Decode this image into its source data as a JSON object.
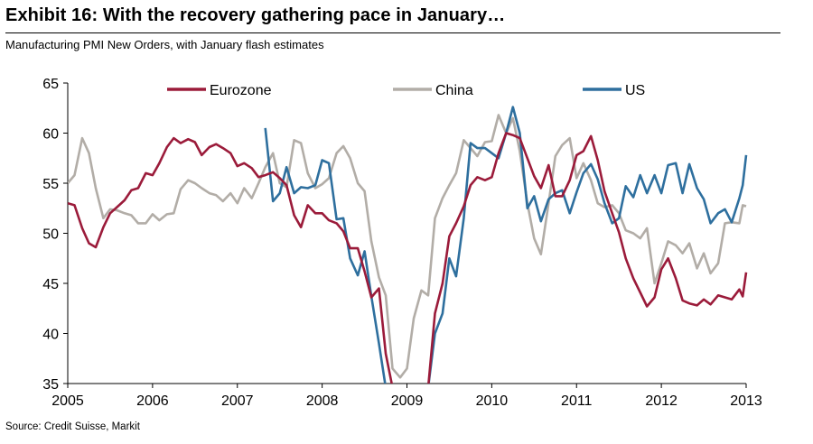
{
  "header": {
    "title": "Exhibit 16: With the recovery gathering pace in January…",
    "subtitle": "Manufacturing PMI New Orders, with January flash estimates"
  },
  "footer": {
    "source": "Source: Credit Suisse, Markit"
  },
  "chart_data": {
    "type": "line",
    "title": "",
    "xlabel": "",
    "ylabel": "",
    "xlim": [
      2005,
      2013
    ],
    "ylim": [
      35,
      65
    ],
    "x_ticks": [
      "2005",
      "2006",
      "2007",
      "2008",
      "2009",
      "2010",
      "2011",
      "2012",
      "2013"
    ],
    "y_ticks": [
      "35",
      "40",
      "45",
      "50",
      "55",
      "60",
      "65"
    ],
    "grid": false,
    "legend": "top",
    "series": [
      {
        "name": "Eurozone",
        "color": "#9B1B3A",
        "points": [
          [
            2005.0,
            53.0
          ],
          [
            2005.08,
            52.8
          ],
          [
            2005.17,
            50.5
          ],
          [
            2005.25,
            49.0
          ],
          [
            2005.33,
            48.6
          ],
          [
            2005.42,
            50.6
          ],
          [
            2005.5,
            52.0
          ],
          [
            2005.58,
            52.6
          ],
          [
            2005.67,
            53.3
          ],
          [
            2005.75,
            54.3
          ],
          [
            2005.83,
            54.5
          ],
          [
            2005.92,
            56.0
          ],
          [
            2006.0,
            55.8
          ],
          [
            2006.08,
            57.0
          ],
          [
            2006.17,
            58.6
          ],
          [
            2006.25,
            59.5
          ],
          [
            2006.33,
            59.0
          ],
          [
            2006.42,
            59.4
          ],
          [
            2006.5,
            59.1
          ],
          [
            2006.58,
            57.8
          ],
          [
            2006.67,
            58.6
          ],
          [
            2006.75,
            58.9
          ],
          [
            2006.83,
            58.5
          ],
          [
            2006.92,
            58.0
          ],
          [
            2007.0,
            56.7
          ],
          [
            2007.08,
            57.0
          ],
          [
            2007.17,
            56.5
          ],
          [
            2007.25,
            55.6
          ],
          [
            2007.33,
            55.8
          ],
          [
            2007.42,
            56.1
          ],
          [
            2007.5,
            55.5
          ],
          [
            2007.58,
            54.8
          ],
          [
            2007.67,
            51.8
          ],
          [
            2007.75,
            50.6
          ],
          [
            2007.83,
            52.8
          ],
          [
            2007.92,
            52.0
          ],
          [
            2008.0,
            52.0
          ],
          [
            2008.08,
            51.3
          ],
          [
            2008.17,
            51.0
          ],
          [
            2008.25,
            50.2
          ],
          [
            2008.33,
            48.5
          ],
          [
            2008.42,
            48.5
          ],
          [
            2008.5,
            46.2
          ],
          [
            2008.58,
            43.6
          ],
          [
            2008.67,
            44.5
          ],
          [
            2008.75,
            38.0
          ],
          [
            2008.83,
            34.6
          ]
        ]
      },
      {
        "name": "Eurozone",
        "color": "#9B1B3A",
        "points": [
          [
            2009.25,
            34.6
          ],
          [
            2009.33,
            42.0
          ],
          [
            2009.42,
            45.0
          ],
          [
            2009.5,
            49.7
          ],
          [
            2009.58,
            51.0
          ],
          [
            2009.67,
            52.7
          ],
          [
            2009.75,
            54.8
          ],
          [
            2009.83,
            55.6
          ],
          [
            2009.92,
            55.3
          ],
          [
            2010.0,
            55.6
          ],
          [
            2010.08,
            58.0
          ],
          [
            2010.17,
            60.0
          ],
          [
            2010.25,
            59.8
          ],
          [
            2010.33,
            59.5
          ],
          [
            2010.42,
            57.5
          ],
          [
            2010.5,
            55.7
          ],
          [
            2010.58,
            54.5
          ],
          [
            2010.67,
            56.8
          ],
          [
            2010.75,
            53.7
          ],
          [
            2010.83,
            53.7
          ],
          [
            2010.92,
            55.3
          ],
          [
            2011.0,
            57.8
          ],
          [
            2011.08,
            58.2
          ],
          [
            2011.17,
            59.7
          ],
          [
            2011.25,
            57.3
          ],
          [
            2011.33,
            54.2
          ],
          [
            2011.42,
            52.0
          ],
          [
            2011.5,
            50.1
          ],
          [
            2011.58,
            47.5
          ],
          [
            2011.67,
            45.5
          ],
          [
            2011.75,
            44.1
          ],
          [
            2011.83,
            42.7
          ],
          [
            2011.92,
            43.6
          ],
          [
            2012.0,
            46.4
          ],
          [
            2012.08,
            47.5
          ],
          [
            2012.17,
            45.5
          ],
          [
            2012.25,
            43.3
          ],
          [
            2012.33,
            43.0
          ],
          [
            2012.42,
            42.8
          ],
          [
            2012.5,
            43.4
          ],
          [
            2012.58,
            42.9
          ],
          [
            2012.67,
            43.8
          ],
          [
            2012.75,
            43.6
          ],
          [
            2012.83,
            43.4
          ],
          [
            2012.92,
            44.4
          ],
          [
            2012.96,
            43.7
          ],
          [
            2013.0,
            46.1
          ]
        ]
      },
      {
        "name": "China",
        "color": "#B2ADA7",
        "points": [
          [
            2005.0,
            55.0
          ],
          [
            2005.08,
            55.8
          ],
          [
            2005.17,
            59.5
          ],
          [
            2005.25,
            58.0
          ],
          [
            2005.33,
            54.5
          ],
          [
            2005.42,
            51.5
          ],
          [
            2005.5,
            52.4
          ],
          [
            2005.58,
            52.3
          ],
          [
            2005.67,
            52.0
          ],
          [
            2005.75,
            51.8
          ],
          [
            2005.83,
            51.0
          ],
          [
            2005.92,
            51.0
          ],
          [
            2006.0,
            51.9
          ],
          [
            2006.08,
            51.3
          ],
          [
            2006.17,
            51.9
          ],
          [
            2006.25,
            52.0
          ],
          [
            2006.33,
            54.4
          ],
          [
            2006.42,
            55.3
          ],
          [
            2006.5,
            55.0
          ],
          [
            2006.58,
            54.5
          ],
          [
            2006.67,
            54.0
          ],
          [
            2006.75,
            53.8
          ],
          [
            2006.83,
            53.2
          ],
          [
            2006.92,
            54.0
          ],
          [
            2007.0,
            53.0
          ],
          [
            2007.08,
            54.5
          ],
          [
            2007.17,
            53.5
          ],
          [
            2007.25,
            55.0
          ],
          [
            2007.33,
            56.6
          ],
          [
            2007.42,
            58.0
          ],
          [
            2007.5,
            55.0
          ],
          [
            2007.58,
            54.6
          ],
          [
            2007.67,
            59.3
          ],
          [
            2007.75,
            59.0
          ],
          [
            2007.83,
            56.0
          ],
          [
            2007.92,
            54.5
          ],
          [
            2008.0,
            54.9
          ],
          [
            2008.08,
            55.5
          ],
          [
            2008.17,
            58.0
          ],
          [
            2008.25,
            58.7
          ],
          [
            2008.33,
            57.5
          ],
          [
            2008.42,
            55.0
          ],
          [
            2008.5,
            54.2
          ],
          [
            2008.58,
            49.2
          ],
          [
            2008.67,
            45.6
          ],
          [
            2008.75,
            43.8
          ],
          [
            2008.83,
            36.5
          ],
          [
            2008.92,
            35.6
          ],
          [
            2009.0,
            36.5
          ],
          [
            2009.08,
            41.5
          ],
          [
            2009.17,
            44.3
          ],
          [
            2009.25,
            43.8
          ],
          [
            2009.33,
            51.5
          ],
          [
            2009.42,
            53.5
          ],
          [
            2009.5,
            54.8
          ],
          [
            2009.58,
            56.0
          ],
          [
            2009.67,
            59.3
          ],
          [
            2009.75,
            58.5
          ],
          [
            2009.83,
            57.7
          ],
          [
            2009.92,
            59.1
          ],
          [
            2010.0,
            59.2
          ],
          [
            2010.08,
            61.8
          ],
          [
            2010.17,
            60.0
          ],
          [
            2010.25,
            61.5
          ],
          [
            2010.33,
            58.2
          ],
          [
            2010.42,
            53.0
          ],
          [
            2010.5,
            49.5
          ],
          [
            2010.58,
            47.9
          ],
          [
            2010.67,
            53.0
          ],
          [
            2010.75,
            57.7
          ],
          [
            2010.83,
            58.8
          ],
          [
            2010.92,
            59.5
          ],
          [
            2011.0,
            55.5
          ],
          [
            2011.08,
            57.0
          ],
          [
            2011.17,
            55.3
          ],
          [
            2011.25,
            53.0
          ],
          [
            2011.33,
            52.6
          ],
          [
            2011.42,
            52.8
          ],
          [
            2011.5,
            52.0
          ],
          [
            2011.58,
            50.3
          ],
          [
            2011.67,
            50.0
          ],
          [
            2011.75,
            49.5
          ],
          [
            2011.83,
            50.5
          ],
          [
            2011.92,
            45.0
          ],
          [
            2012.0,
            47.0
          ],
          [
            2012.08,
            49.2
          ],
          [
            2012.17,
            48.8
          ],
          [
            2012.25,
            48.0
          ],
          [
            2012.33,
            49.0
          ],
          [
            2012.42,
            46.5
          ],
          [
            2012.5,
            48.0
          ],
          [
            2012.58,
            46.0
          ],
          [
            2012.67,
            47.0
          ],
          [
            2012.75,
            51.0
          ],
          [
            2012.83,
            51.1
          ],
          [
            2012.92,
            51.0
          ],
          [
            2012.96,
            52.8
          ],
          [
            2013.0,
            52.7
          ]
        ]
      },
      {
        "name": "US",
        "color": "#2E6F9E",
        "points": [
          [
            2007.33,
            60.5
          ],
          [
            2007.42,
            53.2
          ],
          [
            2007.5,
            54.0
          ],
          [
            2007.58,
            56.6
          ],
          [
            2007.67,
            54.0
          ],
          [
            2007.75,
            54.6
          ],
          [
            2007.83,
            54.5
          ],
          [
            2007.92,
            54.8
          ],
          [
            2008.0,
            57.3
          ],
          [
            2008.08,
            57.0
          ],
          [
            2008.17,
            51.4
          ],
          [
            2008.25,
            51.5
          ],
          [
            2008.33,
            47.5
          ],
          [
            2008.42,
            45.8
          ],
          [
            2008.5,
            48.2
          ],
          [
            2008.58,
            43.7
          ],
          [
            2008.67,
            39.0
          ],
          [
            2008.75,
            34.6
          ]
        ]
      },
      {
        "name": "US",
        "color": "#2E6F9E",
        "points": [
          [
            2009.25,
            34.6
          ],
          [
            2009.33,
            40.0
          ],
          [
            2009.42,
            42.0
          ],
          [
            2009.5,
            47.5
          ],
          [
            2009.58,
            45.7
          ],
          [
            2009.67,
            51.5
          ],
          [
            2009.75,
            59.0
          ],
          [
            2009.83,
            58.5
          ],
          [
            2009.92,
            58.5
          ],
          [
            2010.0,
            58.0
          ],
          [
            2010.08,
            57.5
          ],
          [
            2010.17,
            60.0
          ],
          [
            2010.25,
            62.6
          ],
          [
            2010.33,
            60.0
          ],
          [
            2010.42,
            52.5
          ],
          [
            2010.5,
            53.7
          ],
          [
            2010.58,
            51.2
          ],
          [
            2010.67,
            53.4
          ],
          [
            2010.75,
            54.0
          ],
          [
            2010.83,
            54.3
          ],
          [
            2010.92,
            52.0
          ],
          [
            2011.0,
            54.1
          ],
          [
            2011.08,
            56.0
          ],
          [
            2011.17,
            56.9
          ],
          [
            2011.25,
            55.4
          ],
          [
            2011.33,
            53.0
          ],
          [
            2011.42,
            51.0
          ],
          [
            2011.5,
            51.5
          ],
          [
            2011.58,
            54.7
          ],
          [
            2011.67,
            53.6
          ],
          [
            2011.75,
            55.8
          ],
          [
            2011.83,
            54.0
          ],
          [
            2011.92,
            55.8
          ],
          [
            2012.0,
            54.0
          ],
          [
            2012.08,
            56.8
          ],
          [
            2012.17,
            57.0
          ],
          [
            2012.25,
            54.0
          ],
          [
            2012.33,
            56.9
          ],
          [
            2012.42,
            54.5
          ],
          [
            2012.5,
            53.4
          ],
          [
            2012.58,
            51.0
          ],
          [
            2012.67,
            52.0
          ],
          [
            2012.75,
            52.4
          ],
          [
            2012.83,
            51.1
          ],
          [
            2012.92,
            53.5
          ],
          [
            2012.96,
            54.8
          ],
          [
            2013.0,
            57.8
          ]
        ]
      }
    ]
  }
}
